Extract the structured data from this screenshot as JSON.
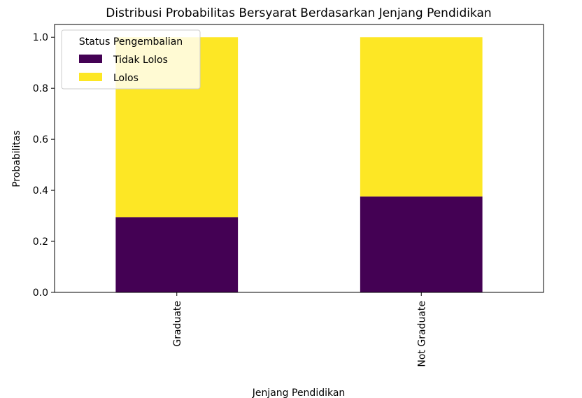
{
  "chart_data": {
    "type": "bar",
    "stacked": true,
    "title": "Distribusi Probabilitas Bersyarat Berdasarkan Jenjang Pendidikan",
    "xlabel": "Jenjang Pendidikan",
    "ylabel": "Probabilitas",
    "categories": [
      "Graduate",
      "Not Graduate"
    ],
    "series": [
      {
        "name": "Tidak Lolos",
        "values": [
          0.295,
          0.376
        ],
        "color": "#440154"
      },
      {
        "name": "Lolos",
        "values": [
          0.705,
          0.624
        ],
        "color": "#fde725"
      }
    ],
    "ylim": [
      0,
      1.05
    ],
    "yticks": [
      "0.0",
      "0.2",
      "0.4",
      "0.6",
      "0.8",
      "1.0"
    ],
    "grid": false,
    "legend": {
      "title": "Status Pengembalian",
      "placement": "top-left"
    }
  }
}
